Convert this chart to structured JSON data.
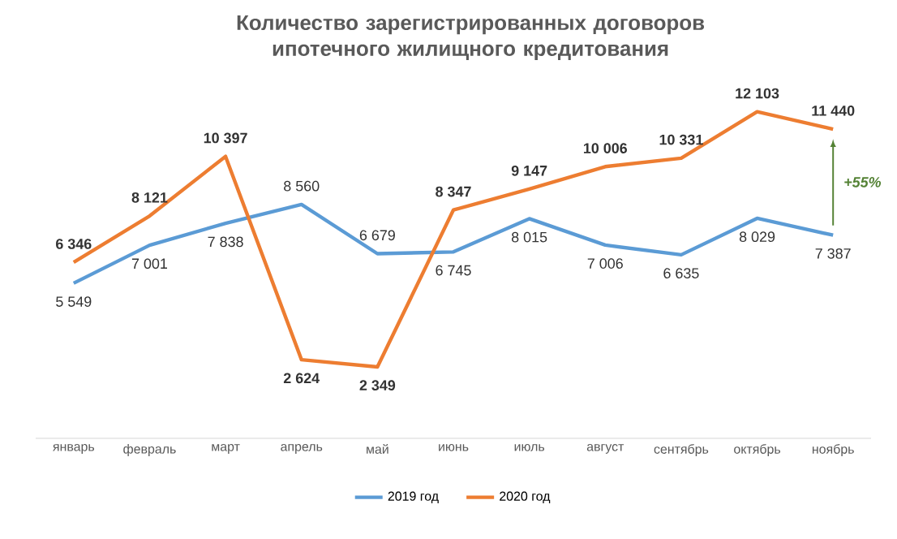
{
  "chart_data": {
    "type": "line",
    "title": "Количество зарегистрированных договоров ипотечного жилищного кредитования",
    "categories": [
      "январь",
      "февраль",
      "март",
      "апрель",
      "май",
      "июнь",
      "июль",
      "август",
      "сентябрь",
      "октябрь",
      "ноябрь"
    ],
    "series": [
      {
        "name": "2019 год",
        "color": "#5b9bd5",
        "values": [
          5549,
          7001,
          7838,
          8560,
          6679,
          6745,
          8015,
          7006,
          6635,
          8029,
          7387
        ],
        "value_labels": [
          "5 549",
          "7 001",
          "7 838",
          "8 560",
          "6 679",
          "6 745",
          "8 015",
          "7 006",
          "6 635",
          "8 029",
          "7 387"
        ]
      },
      {
        "name": "2020 год",
        "color": "#ed7d31",
        "values": [
          6346,
          8121,
          10397,
          2624,
          2349,
          8347,
          9147,
          10006,
          10331,
          12103,
          11440
        ],
        "value_labels": [
          "6 346",
          "8 121",
          "10 397",
          "2 624",
          "2 349",
          "8 347",
          "9 147",
          "10 006",
          "10 331",
          "12 103",
          "11 440"
        ]
      }
    ],
    "annotations": [
      "+55%"
    ],
    "legend": "bottom",
    "marker": "none",
    "line_style": "solid"
  }
}
